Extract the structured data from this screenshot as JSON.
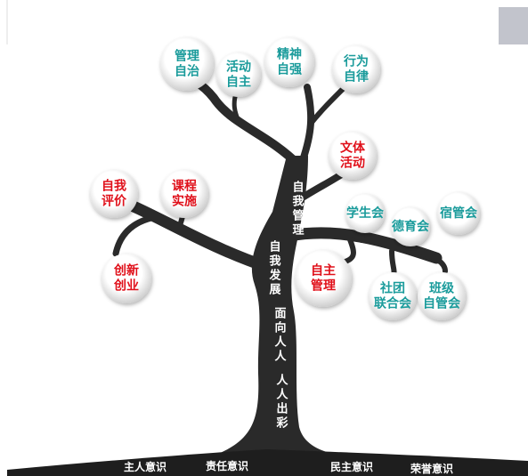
{
  "nodes": [
    {
      "lines": [
        "管理",
        "自治"
      ],
      "color": "#1a9b9b"
    },
    {
      "lines": [
        "活动",
        "自主"
      ],
      "color": "#1a9b9b"
    },
    {
      "lines": [
        "精神",
        "自强"
      ],
      "color": "#1a9b9b"
    },
    {
      "lines": [
        "行为",
        "自律"
      ],
      "color": "#1a9b9b"
    },
    {
      "lines": [
        "文体",
        "活动"
      ],
      "color": "#e0101a"
    },
    {
      "lines": [
        "自我",
        "评价"
      ],
      "color": "#e0101a"
    },
    {
      "lines": [
        "课程",
        "实施"
      ],
      "color": "#e0101a"
    },
    {
      "lines": [
        "学生会"
      ],
      "color": "#1a9b9b"
    },
    {
      "lines": [
        "德育会"
      ],
      "color": "#1a9b9b"
    },
    {
      "lines": [
        "宿管会"
      ],
      "color": "#1a9b9b"
    },
    {
      "lines": [
        "创新",
        "创业"
      ],
      "color": "#e0101a"
    },
    {
      "lines": [
        "自主",
        "管理"
      ],
      "color": "#e0101a"
    },
    {
      "lines": [
        "社团",
        "联合会"
      ],
      "color": "#1a9b9b"
    },
    {
      "lines": [
        "班级",
        "自管会"
      ],
      "color": "#1a9b9b"
    }
  ],
  "trunk": [
    "自我管理",
    "自我发展",
    "面向人人",
    "人人出彩"
  ],
  "ground": [
    "主人意识",
    "责任意识",
    "民主意识",
    "荣誉意识"
  ]
}
